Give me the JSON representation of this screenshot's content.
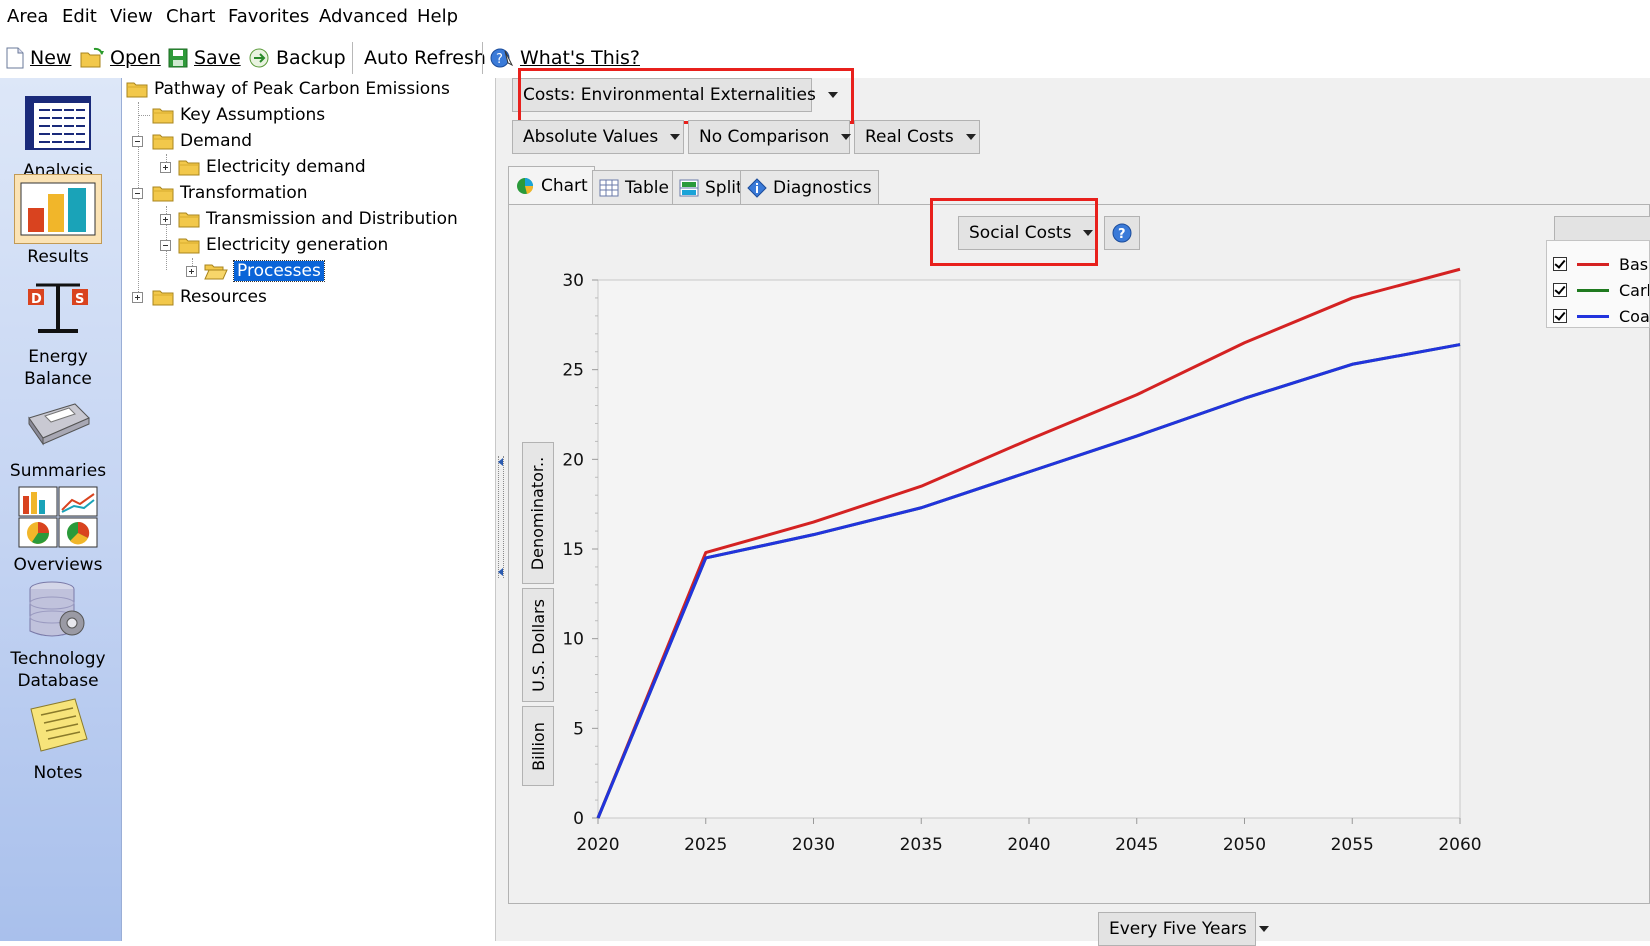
{
  "menu": [
    "Area",
    "Edit",
    "View",
    "Chart",
    "Favorites",
    "Advanced",
    "Help"
  ],
  "toolbar": {
    "new_label": "New",
    "open_label": "Open",
    "save_label": "Save",
    "backup_label": "Backup",
    "auto_refresh_label": "Auto Refresh",
    "whats_this_label": "What's This?"
  },
  "leftbar": {
    "analysis": "Analysis",
    "results": "Results",
    "energy_balance_1": "Energy",
    "energy_balance_2": "Balance",
    "summaries": "Summaries",
    "overviews": "Overviews",
    "techdb_1": "Technology",
    "techdb_2": "Database",
    "notes": "Notes",
    "selected": "Results"
  },
  "tree": {
    "root": "Pathway of Peak Carbon Emissions",
    "key_assumptions": "Key Assumptions",
    "demand": "Demand",
    "electricity_demand": "Electricity demand",
    "transformation": "Transformation",
    "transmission": "Transmission and Distribution",
    "electricity_generation": "Electricity generation",
    "processes": "Processes",
    "resources": "Resources",
    "selected": "Processes"
  },
  "controls": {
    "category": "Costs: Environmental Externalities",
    "values_mode": "Absolute Values",
    "comparison": "No Comparison",
    "costs_mode": "Real Costs",
    "subcategory": "Social Costs",
    "period": "Every Five Years"
  },
  "tabs": [
    "Chart",
    "Table",
    "Split",
    "Diagnostics"
  ],
  "active_tab": "Chart",
  "units": {
    "denominator": "Denominator..",
    "currency": "U.S. Dollars",
    "scale": "Billion"
  },
  "colors": {
    "accent_red": "#e8201c",
    "series_base": "#d42222",
    "series_carbon": "#1f7a1f",
    "series_coal": "#2233dd",
    "selection": "#0a64d8"
  },
  "chart_data": {
    "type": "line",
    "x": [
      2020,
      2025,
      2030,
      2035,
      2040,
      2045,
      2050,
      2055,
      2060
    ],
    "xlabel": "",
    "ylabel": "",
    "ylim": [
      0,
      30
    ],
    "yticks": [
      0,
      5,
      10,
      15,
      20,
      25,
      30
    ],
    "grid": false,
    "legend": "right",
    "series": [
      {
        "name": "Bas",
        "color": "#d42222",
        "values": [
          0,
          14.8,
          16.5,
          18.5,
          21.1,
          23.6,
          26.5,
          29.0,
          30.6
        ]
      },
      {
        "name": "Carb",
        "color": "#1f7a1f",
        "values": [
          0,
          14.5,
          15.8,
          17.3,
          19.3,
          21.3,
          23.4,
          25.3,
          26.4
        ]
      },
      {
        "name": "Coa",
        "color": "#2233dd",
        "values": [
          0,
          14.5,
          15.8,
          17.3,
          19.3,
          21.3,
          23.4,
          25.3,
          26.4
        ]
      }
    ]
  }
}
